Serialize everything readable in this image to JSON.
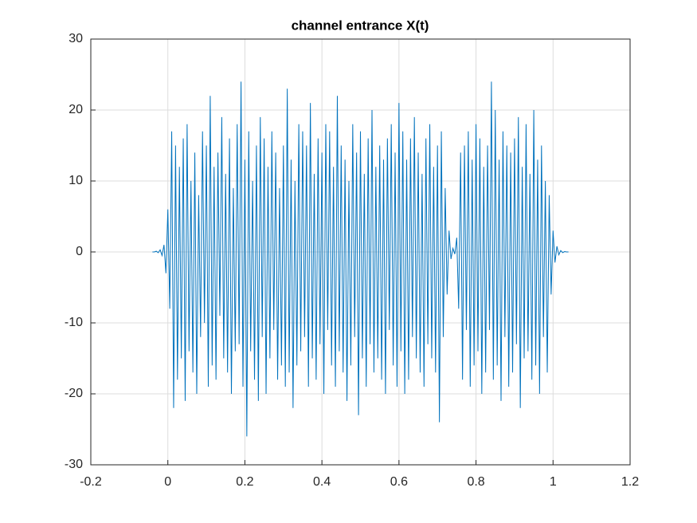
{
  "chart_data": {
    "type": "line",
    "title": "channel entrance X(t)",
    "x": [
      -0.04,
      -0.035,
      -0.03,
      -0.025,
      -0.02,
      -0.015,
      -0.01,
      -0.005,
      0,
      0.005,
      0.01,
      0.015,
      0.02,
      0.025,
      0.03,
      0.035,
      0.04,
      0.045,
      0.05,
      0.055,
      0.06,
      0.065,
      0.07,
      0.075,
      0.08,
      0.085,
      0.09,
      0.095,
      0.1,
      0.105,
      0.11,
      0.115,
      0.12,
      0.125,
      0.13,
      0.135,
      0.14,
      0.145,
      0.15,
      0.155,
      0.16,
      0.165,
      0.17,
      0.175,
      0.18,
      0.185,
      0.19,
      0.195,
      0.2,
      0.205,
      0.21,
      0.215,
      0.22,
      0.225,
      0.23,
      0.235,
      0.24,
      0.245,
      0.25,
      0.255,
      0.26,
      0.265,
      0.27,
      0.275,
      0.28,
      0.285,
      0.29,
      0.295,
      0.3,
      0.305,
      0.31,
      0.315,
      0.32,
      0.325,
      0.33,
      0.335,
      0.34,
      0.345,
      0.35,
      0.355,
      0.36,
      0.365,
      0.37,
      0.375,
      0.38,
      0.385,
      0.39,
      0.395,
      0.4,
      0.405,
      0.41,
      0.415,
      0.42,
      0.425,
      0.43,
      0.435,
      0.44,
      0.445,
      0.45,
      0.455,
      0.46,
      0.465,
      0.47,
      0.475,
      0.48,
      0.485,
      0.49,
      0.495,
      0.5,
      0.505,
      0.51,
      0.515,
      0.52,
      0.525,
      0.53,
      0.535,
      0.54,
      0.545,
      0.55,
      0.555,
      0.56,
      0.565,
      0.57,
      0.575,
      0.58,
      0.585,
      0.59,
      0.595,
      0.6,
      0.605,
      0.61,
      0.615,
      0.62,
      0.625,
      0.63,
      0.635,
      0.64,
      0.645,
      0.65,
      0.655,
      0.66,
      0.665,
      0.67,
      0.675,
      0.68,
      0.685,
      0.69,
      0.695,
      0.7,
      0.705,
      0.71,
      0.715,
      0.72,
      0.725,
      0.73,
      0.735,
      0.74,
      0.745,
      0.75,
      0.755,
      0.76,
      0.765,
      0.77,
      0.775,
      0.78,
      0.785,
      0.79,
      0.795,
      0.8,
      0.805,
      0.81,
      0.815,
      0.82,
      0.825,
      0.83,
      0.835,
      0.84,
      0.845,
      0.85,
      0.855,
      0.86,
      0.865,
      0.87,
      0.875,
      0.88,
      0.885,
      0.89,
      0.895,
      0.9,
      0.905,
      0.91,
      0.915,
      0.92,
      0.925,
      0.93,
      0.935,
      0.94,
      0.945,
      0.95,
      0.955,
      0.96,
      0.965,
      0.97,
      0.975,
      0.98,
      0.985,
      0.99,
      0.995,
      1,
      1.005,
      1.01,
      1.015,
      1.02,
      1.025,
      1.03,
      1.035,
      1.04
    ],
    "series": [
      {
        "color": "#0072bd",
        "values": [
          0,
          0,
          0.1,
          -0.1,
          0.3,
          -0.5,
          1,
          -3,
          6,
          -8,
          17,
          -22,
          15,
          -18,
          12,
          -15,
          16,
          -21,
          18,
          -14,
          10,
          -17,
          14,
          -20,
          8,
          -12,
          17,
          -10,
          15,
          -19,
          22,
          -16,
          12,
          -18,
          14,
          -9,
          19,
          -15,
          11,
          -17,
          16,
          -20,
          9,
          -14,
          18,
          -13,
          24,
          -19,
          13,
          -26,
          17,
          -14,
          10,
          -18,
          15,
          -21,
          19,
          -12,
          16,
          -20,
          12,
          -15,
          17,
          -11,
          14,
          -18,
          9,
          -16,
          15,
          -19,
          23,
          -17,
          13,
          -22,
          10,
          -16,
          18,
          -14,
          17,
          -12,
          15,
          -19,
          21,
          -15,
          11,
          -18,
          16,
          -13,
          14,
          -20,
          18,
          -11,
          17,
          -16,
          12,
          -19,
          22,
          -14,
          15,
          -17,
          13,
          -21,
          10,
          -16,
          18,
          -12,
          14,
          -23,
          17,
          -15,
          11,
          -19,
          16,
          -13,
          20,
          -17,
          12,
          -15,
          15,
          -18,
          13,
          -20,
          16,
          -11,
          18,
          -16,
          14,
          -19,
          21,
          -14,
          17,
          -20,
          13,
          -18,
          16,
          -12,
          19,
          -15,
          14,
          -17,
          11,
          -19,
          16,
          -13,
          18,
          -15,
          12,
          -17,
          15,
          -24,
          17,
          -12,
          9,
          -6,
          3,
          -1,
          0.5,
          -0.3,
          2,
          -8,
          14,
          -18,
          15,
          -11,
          17,
          -19,
          13,
          -16,
          18,
          -14,
          16,
          -20,
          12,
          -17,
          15,
          -11,
          24,
          -18,
          20,
          -16,
          13,
          -21,
          17,
          -12,
          15,
          -19,
          14,
          -17,
          16,
          -13,
          19,
          -22,
          12,
          -15,
          18,
          -14,
          11,
          -18,
          20,
          -16,
          13,
          -20,
          15,
          -12,
          10,
          -17,
          8,
          -6,
          3,
          -1.5,
          0.8,
          -0.4,
          0.2,
          -0.1,
          0.05,
          0,
          0
        ]
      }
    ],
    "xlim": [
      -0.2,
      1.2
    ],
    "xticks": [
      -0.2,
      0,
      0.2,
      0.4,
      0.6,
      0.8,
      1,
      1.2
    ],
    "ylim": [
      -30,
      30
    ],
    "yticks": [
      -30,
      -20,
      -10,
      0,
      10,
      20,
      30
    ],
    "grid": true
  }
}
